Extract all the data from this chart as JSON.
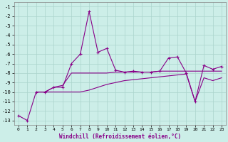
{
  "xlabel": "Windchill (Refroidissement éolien,°C)",
  "background_color": "#cceee8",
  "grid_color": "#aad4cc",
  "line_color": "#880088",
  "xlim": [
    -0.5,
    23.5
  ],
  "ylim": [
    -13.5,
    -0.5
  ],
  "xticks": [
    0,
    1,
    2,
    3,
    4,
    5,
    6,
    7,
    8,
    9,
    10,
    11,
    12,
    13,
    14,
    15,
    16,
    17,
    18,
    19,
    20,
    21,
    22,
    23
  ],
  "yticks": [
    -1,
    -2,
    -3,
    -4,
    -5,
    -6,
    -7,
    -8,
    -9,
    -10,
    -11,
    -12,
    -13
  ],
  "line1_x": [
    0,
    1,
    2,
    3,
    4,
    5,
    6,
    7,
    8,
    9,
    10,
    11,
    12,
    13,
    14,
    15,
    16,
    17,
    18,
    19,
    20,
    21,
    22,
    23
  ],
  "line1_y": [
    -12.5,
    -13.0,
    -10.0,
    -10.0,
    -9.5,
    -9.5,
    -7.0,
    -6.0,
    -1.5,
    -5.8,
    -5.4,
    -7.7,
    -7.9,
    -7.8,
    -7.9,
    -7.9,
    -7.8,
    -6.4,
    -6.3,
    -8.0,
    -11.0,
    -7.2,
    -7.6,
    -7.3
  ],
  "line2_x": [
    2,
    3,
    4,
    5,
    6,
    7,
    8,
    9,
    10,
    11,
    12,
    13,
    14,
    15,
    16,
    17,
    18,
    19,
    20,
    21,
    22,
    23
  ],
  "line2_y": [
    -10.0,
    -10.0,
    -9.5,
    -9.3,
    -8.0,
    -8.0,
    -8.0,
    -8.0,
    -8.0,
    -7.9,
    -7.9,
    -7.9,
    -7.9,
    -7.9,
    -7.8,
    -7.8,
    -7.8,
    -7.8,
    -7.8,
    -7.8,
    -7.8,
    -7.8
  ],
  "line3_x": [
    2,
    3,
    4,
    5,
    6,
    7,
    8,
    9,
    10,
    11,
    12,
    13,
    14,
    15,
    16,
    17,
    18,
    19,
    20,
    21,
    22,
    23
  ],
  "line3_y": [
    -10.0,
    -10.0,
    -10.0,
    -10.0,
    -10.0,
    -10.0,
    -9.8,
    -9.5,
    -9.2,
    -9.0,
    -8.8,
    -8.7,
    -8.6,
    -8.5,
    -8.4,
    -8.3,
    -8.2,
    -8.1,
    -11.0,
    -8.5,
    -8.8,
    -8.5
  ]
}
